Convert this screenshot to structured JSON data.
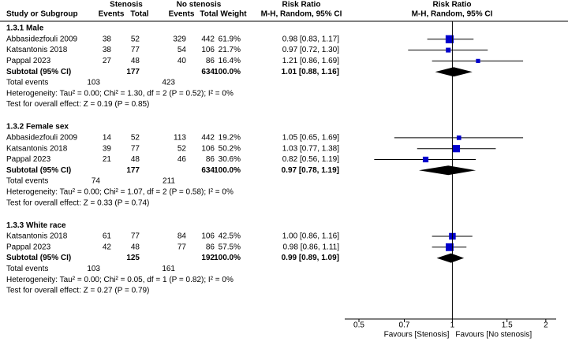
{
  "chart_data": {
    "type": "forest",
    "headers": {
      "group1": "Stenosis",
      "group2": "No stenosis",
      "effect_table": "Risk Ratio",
      "effect_plot": "Risk Ratio",
      "study": "Study or Subgroup",
      "events1": "Events",
      "total1": "Total",
      "events2": "Events",
      "total2": "Total",
      "weight": "Weight",
      "method_table": "M-H, Random, 95% CI",
      "method_plot": "M-H, Random, 95% CI"
    },
    "xlim": [
      0.45,
      2.16
    ],
    "xticks": [
      0.5,
      0.7,
      1,
      1.5,
      2
    ],
    "log_x": true,
    "favours_left": "Favours [Stenosis]",
    "favours_right": "Favours [No stenosis]",
    "square_color": "#0000cc",
    "subgroups": [
      {
        "name": "1.3.1 Male",
        "studies": [
          {
            "name": "Abbasidezfouli 2009",
            "events1": 38,
            "total1": 52,
            "events2": 329,
            "total2": 442,
            "weight": 61.9,
            "weight_label": "61.9%",
            "rr": 0.98,
            "lo": 0.83,
            "hi": 1.17,
            "ci_label": "0.98 [0.83, 1.17]"
          },
          {
            "name": "Katsantonis 2018",
            "events1": 38,
            "total1": 77,
            "events2": 54,
            "total2": 106,
            "weight": 21.7,
            "weight_label": "21.7%",
            "rr": 0.97,
            "lo": 0.72,
            "hi": 1.3,
            "ci_label": "0.97 [0.72, 1.30]"
          },
          {
            "name": "Pappal 2023",
            "events1": 27,
            "total1": 48,
            "events2": 40,
            "total2": 86,
            "weight": 16.4,
            "weight_label": "16.4%",
            "rr": 1.21,
            "lo": 0.86,
            "hi": 1.69,
            "ci_label": "1.21 [0.86, 1.69]"
          }
        ],
        "subtotal": {
          "label": "Subtotal (95% CI)",
          "total1": 177,
          "total2": 634,
          "weight": 100,
          "weight_label": "100.0%",
          "rr": 1.01,
          "lo": 0.88,
          "hi": 1.16,
          "ci_label": "1.01 [0.88, 1.16]"
        },
        "total_events": {
          "label": "Total events",
          "events1": 103,
          "events2": 423
        },
        "heterogeneity": "Heterogeneity: Tau² = 0.00; Chi² = 1.30, df = 2 (P = 0.52); I² = 0%",
        "overall": "Test for overall effect: Z = 0.19 (P = 0.85)"
      },
      {
        "name": "1.3.2 Female sex",
        "studies": [
          {
            "name": "Abbasidezfouli 2009",
            "events1": 14,
            "total1": 52,
            "events2": 113,
            "total2": 442,
            "weight": 19.2,
            "weight_label": "19.2%",
            "rr": 1.05,
            "lo": 0.65,
            "hi": 1.69,
            "ci_label": "1.05 [0.65, 1.69]"
          },
          {
            "name": "Katsantonis 2018",
            "events1": 39,
            "total1": 77,
            "events2": 52,
            "total2": 106,
            "weight": 50.2,
            "weight_label": "50.2%",
            "rr": 1.03,
            "lo": 0.77,
            "hi": 1.38,
            "ci_label": "1.03 [0.77, 1.38]"
          },
          {
            "name": "Pappal 2023",
            "events1": 21,
            "total1": 48,
            "events2": 46,
            "total2": 86,
            "weight": 30.6,
            "weight_label": "30.6%",
            "rr": 0.82,
            "lo": 0.56,
            "hi": 1.19,
            "ci_label": "0.82 [0.56, 1.19]"
          }
        ],
        "subtotal": {
          "label": "Subtotal (95% CI)",
          "total1": 177,
          "total2": 634,
          "weight": 100,
          "weight_label": "100.0%",
          "rr": 0.97,
          "lo": 0.78,
          "hi": 1.19,
          "ci_label": "0.97 [0.78, 1.19]"
        },
        "total_events": {
          "label": "Total events",
          "events1": 74,
          "events2": 211
        },
        "heterogeneity": "Heterogeneity: Tau² = 0.00; Chi² = 1.07, df = 2 (P = 0.58); I² = 0%",
        "overall": "Test for overall effect: Z = 0.33 (P = 0.74)"
      },
      {
        "name": "1.3.3 White race",
        "studies": [
          {
            "name": "Katsantonis 2018",
            "events1": 61,
            "total1": 77,
            "events2": 84,
            "total2": 106,
            "weight": 42.5,
            "weight_label": "42.5%",
            "rr": 1.0,
            "lo": 0.86,
            "hi": 1.16,
            "ci_label": "1.00 [0.86, 1.16]"
          },
          {
            "name": "Pappal 2023",
            "events1": 42,
            "total1": 48,
            "events2": 77,
            "total2": 86,
            "weight": 57.5,
            "weight_label": "57.5%",
            "rr": 0.98,
            "lo": 0.86,
            "hi": 1.11,
            "ci_label": "0.98 [0.86, 1.11]"
          }
        ],
        "subtotal": {
          "label": "Subtotal (95% CI)",
          "total1": 125,
          "total2": 192,
          "weight": 100,
          "weight_label": "100.0%",
          "rr": 0.99,
          "lo": 0.89,
          "hi": 1.09,
          "ci_label": "0.99 [0.89, 1.09]"
        },
        "total_events": {
          "label": "Total events",
          "events1": 103,
          "events2": 161
        },
        "heterogeneity": "Heterogeneity: Tau² = 0.00; Chi² = 0.05, df = 1 (P = 0.82); I² = 0%",
        "overall": "Test for overall effect: Z = 0.27 (P = 0.79)"
      }
    ]
  }
}
